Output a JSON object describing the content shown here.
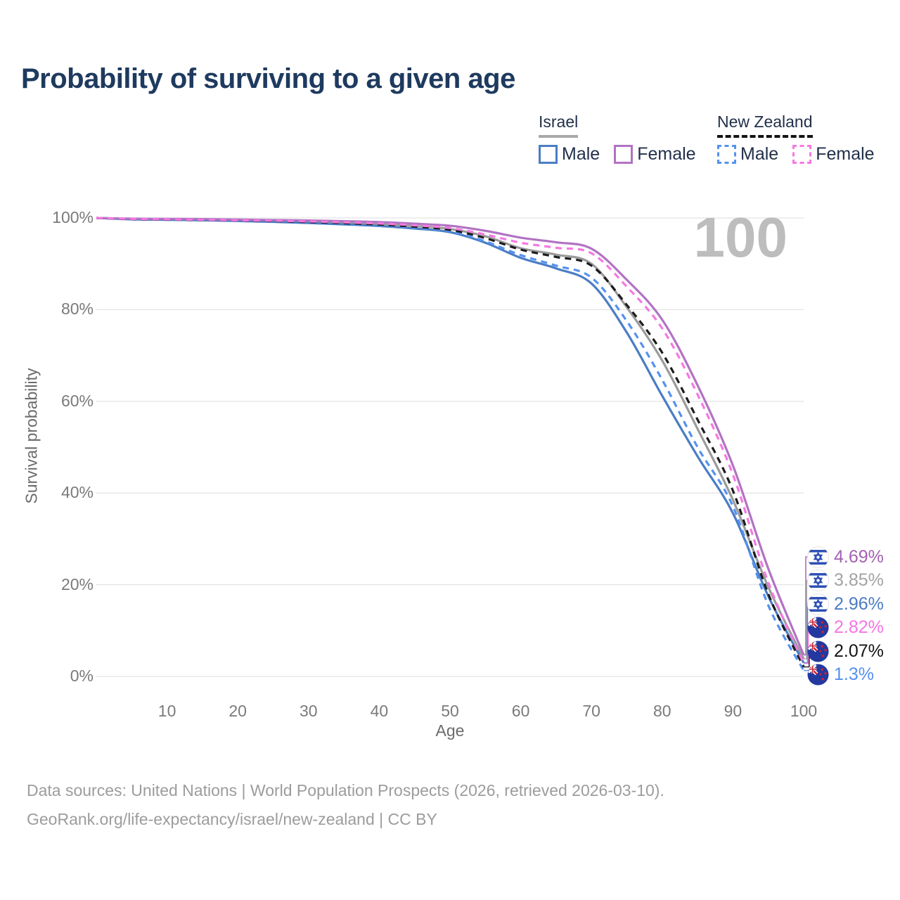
{
  "title": "Probability of surviving to a given age",
  "legend": {
    "groups": [
      {
        "name": "Israel",
        "line_style": "solid",
        "underline_color": "#a9a9a9",
        "items": [
          {
            "label": "Male",
            "color": "#4a7dc4"
          },
          {
            "label": "Female",
            "color": "#b173c2"
          }
        ]
      },
      {
        "name": "New Zealand",
        "line_style": "dashed",
        "underline_color": "#141414",
        "items": [
          {
            "label": "Male",
            "color": "#5592ef"
          },
          {
            "label": "Female",
            "color": "#f678e2"
          }
        ]
      }
    ]
  },
  "chart_data": {
    "type": "line",
    "title": "Probability of surviving to a given age",
    "xlabel": "Age",
    "ylabel": "Survival probability",
    "xlim": [
      0,
      100
    ],
    "ylim": [
      0,
      100
    ],
    "grid": "horizontal",
    "age_indicator": "100",
    "x": [
      0,
      5,
      10,
      15,
      20,
      25,
      30,
      35,
      40,
      45,
      50,
      55,
      60,
      65,
      70,
      75,
      80,
      85,
      90,
      95,
      100
    ],
    "series": [
      {
        "name": "Israel Total",
        "country": "israel",
        "style": "solid",
        "color": "#9b9b9b",
        "values": [
          100,
          99.8,
          99.7,
          99.6,
          99.5,
          99.4,
          99.2,
          99.0,
          98.7,
          98.25,
          97.6,
          96.0,
          93.4,
          92.0,
          90.0,
          80.5,
          68.9,
          54.0,
          38.5,
          19.5,
          3.85
        ]
      },
      {
        "name": "Israel Male",
        "country": "israel",
        "style": "solid",
        "color": "#4a7dc4",
        "values": [
          100,
          99.7,
          99.6,
          99.5,
          99.35,
          99.15,
          98.9,
          98.6,
          98.25,
          97.7,
          96.9,
          94.6,
          91.3,
          89.0,
          85.7,
          75.0,
          61.2,
          48.0,
          35.6,
          17.5,
          2.96
        ]
      },
      {
        "name": "Israel Female",
        "country": "israel",
        "style": "solid",
        "color": "#b173c2",
        "values": [
          100,
          99.85,
          99.8,
          99.75,
          99.65,
          99.55,
          99.45,
          99.3,
          99.1,
          98.75,
          98.3,
          97.2,
          95.7,
          94.7,
          93.3,
          86.5,
          77.8,
          63.5,
          46.0,
          23.5,
          4.69
        ]
      },
      {
        "name": "New Zealand Male",
        "country": "nz",
        "style": "dashed",
        "color": "#5592ef",
        "values": [
          100,
          99.7,
          99.6,
          99.5,
          99.4,
          99.2,
          99.0,
          98.7,
          98.35,
          97.85,
          97.1,
          94.9,
          91.9,
          89.6,
          87.0,
          77.5,
          64.7,
          50.0,
          37.1,
          15.5,
          1.3
        ]
      },
      {
        "name": "New Zealand Total",
        "country": "nz",
        "style": "dashed",
        "color": "#1c1c1c",
        "values": [
          100,
          99.75,
          99.65,
          99.55,
          99.45,
          99.3,
          99.1,
          98.85,
          98.55,
          98.1,
          97.4,
          95.6,
          93.1,
          91.5,
          89.6,
          81.0,
          70.6,
          56.0,
          40.5,
          18.0,
          2.07
        ]
      },
      {
        "name": "New Zealand Female",
        "country": "nz",
        "style": "dashed",
        "color": "#f678e2",
        "values": [
          100,
          99.8,
          99.7,
          99.6,
          99.5,
          99.4,
          99.25,
          99.05,
          98.8,
          98.4,
          97.8,
          96.4,
          94.6,
          93.5,
          92.3,
          85.0,
          75.9,
          61.5,
          44.0,
          20.5,
          2.82
        ]
      }
    ],
    "y_ticks": [
      {
        "v": 0,
        "label": "0%"
      },
      {
        "v": 20,
        "label": "20%"
      },
      {
        "v": 40,
        "label": "40%"
      },
      {
        "v": 60,
        "label": "60%"
      },
      {
        "v": 80,
        "label": "80%"
      },
      {
        "v": 100,
        "label": "100%"
      }
    ],
    "x_ticks": [
      {
        "v": 10,
        "label": "10"
      },
      {
        "v": 20,
        "label": "20"
      },
      {
        "v": 30,
        "label": "30"
      },
      {
        "v": 40,
        "label": "40"
      },
      {
        "v": 50,
        "label": "50"
      },
      {
        "v": 60,
        "label": "60"
      },
      {
        "v": 70,
        "label": "70"
      },
      {
        "v": 80,
        "label": "80"
      },
      {
        "v": 90,
        "label": "90"
      },
      {
        "v": 100,
        "label": "100"
      }
    ],
    "end_labels": [
      {
        "series": "Israel Female",
        "country": "israel",
        "label": "4.69%",
        "value": 4.69,
        "color": "#a361b1"
      },
      {
        "series": "Israel Total",
        "country": "israel",
        "label": "3.85%",
        "value": 3.85,
        "color": "#a3a3a3"
      },
      {
        "series": "Israel Male",
        "country": "israel",
        "label": "2.96%",
        "value": 2.96,
        "color": "#4a7dc4"
      },
      {
        "series": "New Zealand Female",
        "country": "nz",
        "label": "2.82%",
        "value": 2.82,
        "color": "#f675e2"
      },
      {
        "series": "New Zealand Total",
        "country": "nz",
        "label": "2.07%",
        "value": 2.07,
        "color": "#141414"
      },
      {
        "series": "New Zealand Male",
        "country": "nz",
        "label": "1.3%",
        "value": 1.3,
        "color": "#568fee"
      }
    ]
  },
  "colors": {
    "title": "#1e3a5f",
    "legend_text": "#22304a",
    "grid": "#e4e4e4",
    "tick_text": "#7a7a7a",
    "axis_label": "#6b6b6b",
    "watermark": "#bdbdbd",
    "footer": "#9c9c9c",
    "israel_flag_blue": "#2e4fb5",
    "nz_flag_navy": "#23399f",
    "nz_flag_red": "#cc2136"
  },
  "footer": {
    "line1": "Data sources: United Nations | World Population Prospects (2026, retrieved 2026-03-10).",
    "line2": "GeoRank.org/life-expectancy/israel/new-zealand | CC BY"
  }
}
